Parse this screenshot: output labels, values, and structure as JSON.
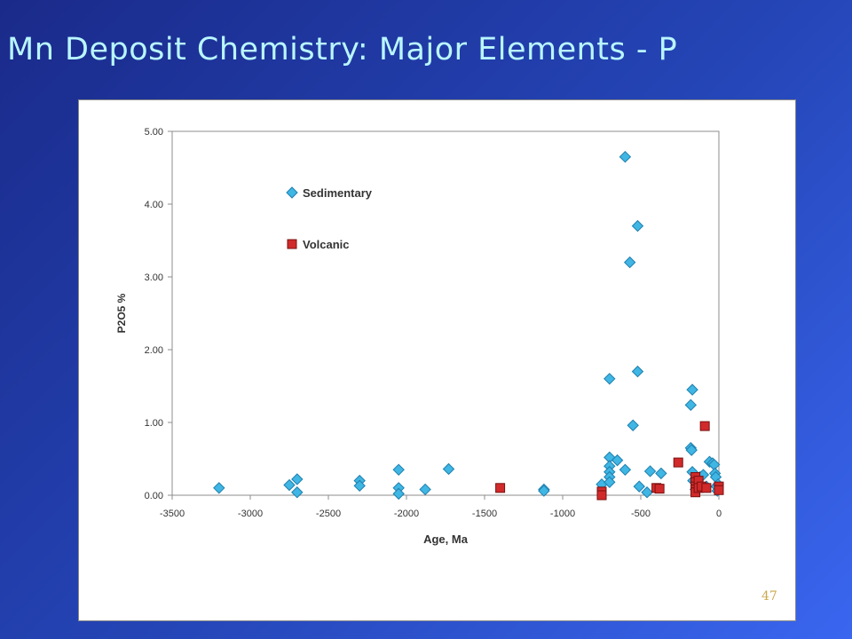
{
  "slide": {
    "title": "Mn Deposit Chemistry: Major Elements - P",
    "page_number": "47"
  },
  "colors": {
    "background_gradient_start": "#1a2a8a",
    "background_gradient_end": "#3a66f0",
    "title": "#b9f6ff",
    "sedimentary_fill": "#3fb6e3",
    "sedimentary_stroke": "#1f7fae",
    "volcanic_fill": "#d12a2a",
    "volcanic_stroke": "#7a1010",
    "page_number": "#c9a94a"
  },
  "chart_data": {
    "type": "scatter",
    "title": "",
    "xlabel": "Age, Ma",
    "ylabel": "P2O5 %",
    "xlim": [
      -3500,
      0
    ],
    "ylim": [
      0,
      5
    ],
    "x_ticks": [
      -3500,
      -3000,
      -2500,
      -2000,
      -1500,
      -1000,
      -500,
      0
    ],
    "y_ticks": [
      0,
      1,
      2,
      3,
      4,
      5
    ],
    "x_tick_labels": [
      "-3500",
      "-3000",
      "-2500",
      "-2000",
      "-1500",
      "-1000",
      "-500",
      "0"
    ],
    "y_tick_labels": [
      "0.00",
      "1.00",
      "2.00",
      "3.00",
      "4.00",
      "5.00"
    ],
    "grid": false,
    "legend_position": "top-left",
    "series": [
      {
        "name": "Sedimentary",
        "marker": "diamond",
        "points": [
          [
            -3200,
            0.1
          ],
          [
            -2750,
            0.14
          ],
          [
            -2700,
            0.22
          ],
          [
            -2700,
            0.04
          ],
          [
            -2300,
            0.2
          ],
          [
            -2300,
            0.13
          ],
          [
            -2050,
            0.35
          ],
          [
            -2050,
            0.1
          ],
          [
            -2050,
            0.02
          ],
          [
            -1880,
            0.08
          ],
          [
            -1730,
            0.36
          ],
          [
            -1120,
            0.08
          ],
          [
            -1120,
            0.06
          ],
          [
            -750,
            0.15
          ],
          [
            -700,
            1.6
          ],
          [
            -700,
            0.52
          ],
          [
            -700,
            0.4
          ],
          [
            -700,
            0.32
          ],
          [
            -700,
            0.25
          ],
          [
            -700,
            0.18
          ],
          [
            -650,
            0.48
          ],
          [
            -600,
            4.65
          ],
          [
            -600,
            0.35
          ],
          [
            -570,
            3.2
          ],
          [
            -550,
            0.96
          ],
          [
            -520,
            3.7
          ],
          [
            -520,
            1.7
          ],
          [
            -510,
            0.12
          ],
          [
            -460,
            0.04
          ],
          [
            -440,
            0.33
          ],
          [
            -370,
            0.3
          ],
          [
            -180,
            1.24
          ],
          [
            -180,
            0.65
          ],
          [
            -175,
            0.62
          ],
          [
            -170,
            1.45
          ],
          [
            -170,
            0.32
          ],
          [
            -165,
            0.2
          ],
          [
            -150,
            0.18
          ],
          [
            -150,
            0.08
          ],
          [
            -120,
            0.25
          ],
          [
            -100,
            0.28
          ],
          [
            -80,
            0.12
          ],
          [
            -60,
            0.46
          ],
          [
            -40,
            0.44
          ],
          [
            -30,
            0.42
          ],
          [
            -25,
            0.3
          ],
          [
            -20,
            0.25
          ],
          [
            -15,
            0.12
          ],
          [
            -10,
            0.06
          ],
          [
            -5,
            0.15
          ]
        ]
      },
      {
        "name": "Volcanic",
        "marker": "square",
        "points": [
          [
            -1400,
            0.1
          ],
          [
            -750,
            0.05
          ],
          [
            -750,
            0.0
          ],
          [
            -400,
            0.1
          ],
          [
            -380,
            0.09
          ],
          [
            -260,
            0.45
          ],
          [
            -150,
            0.25
          ],
          [
            -150,
            0.18
          ],
          [
            -150,
            0.12
          ],
          [
            -150,
            0.08
          ],
          [
            -150,
            0.04
          ],
          [
            -130,
            0.2
          ],
          [
            -130,
            0.1
          ],
          [
            -110,
            0.12
          ],
          [
            -90,
            0.95
          ],
          [
            -80,
            0.1
          ],
          [
            0,
            0.12
          ],
          [
            0,
            0.07
          ]
        ]
      }
    ]
  }
}
